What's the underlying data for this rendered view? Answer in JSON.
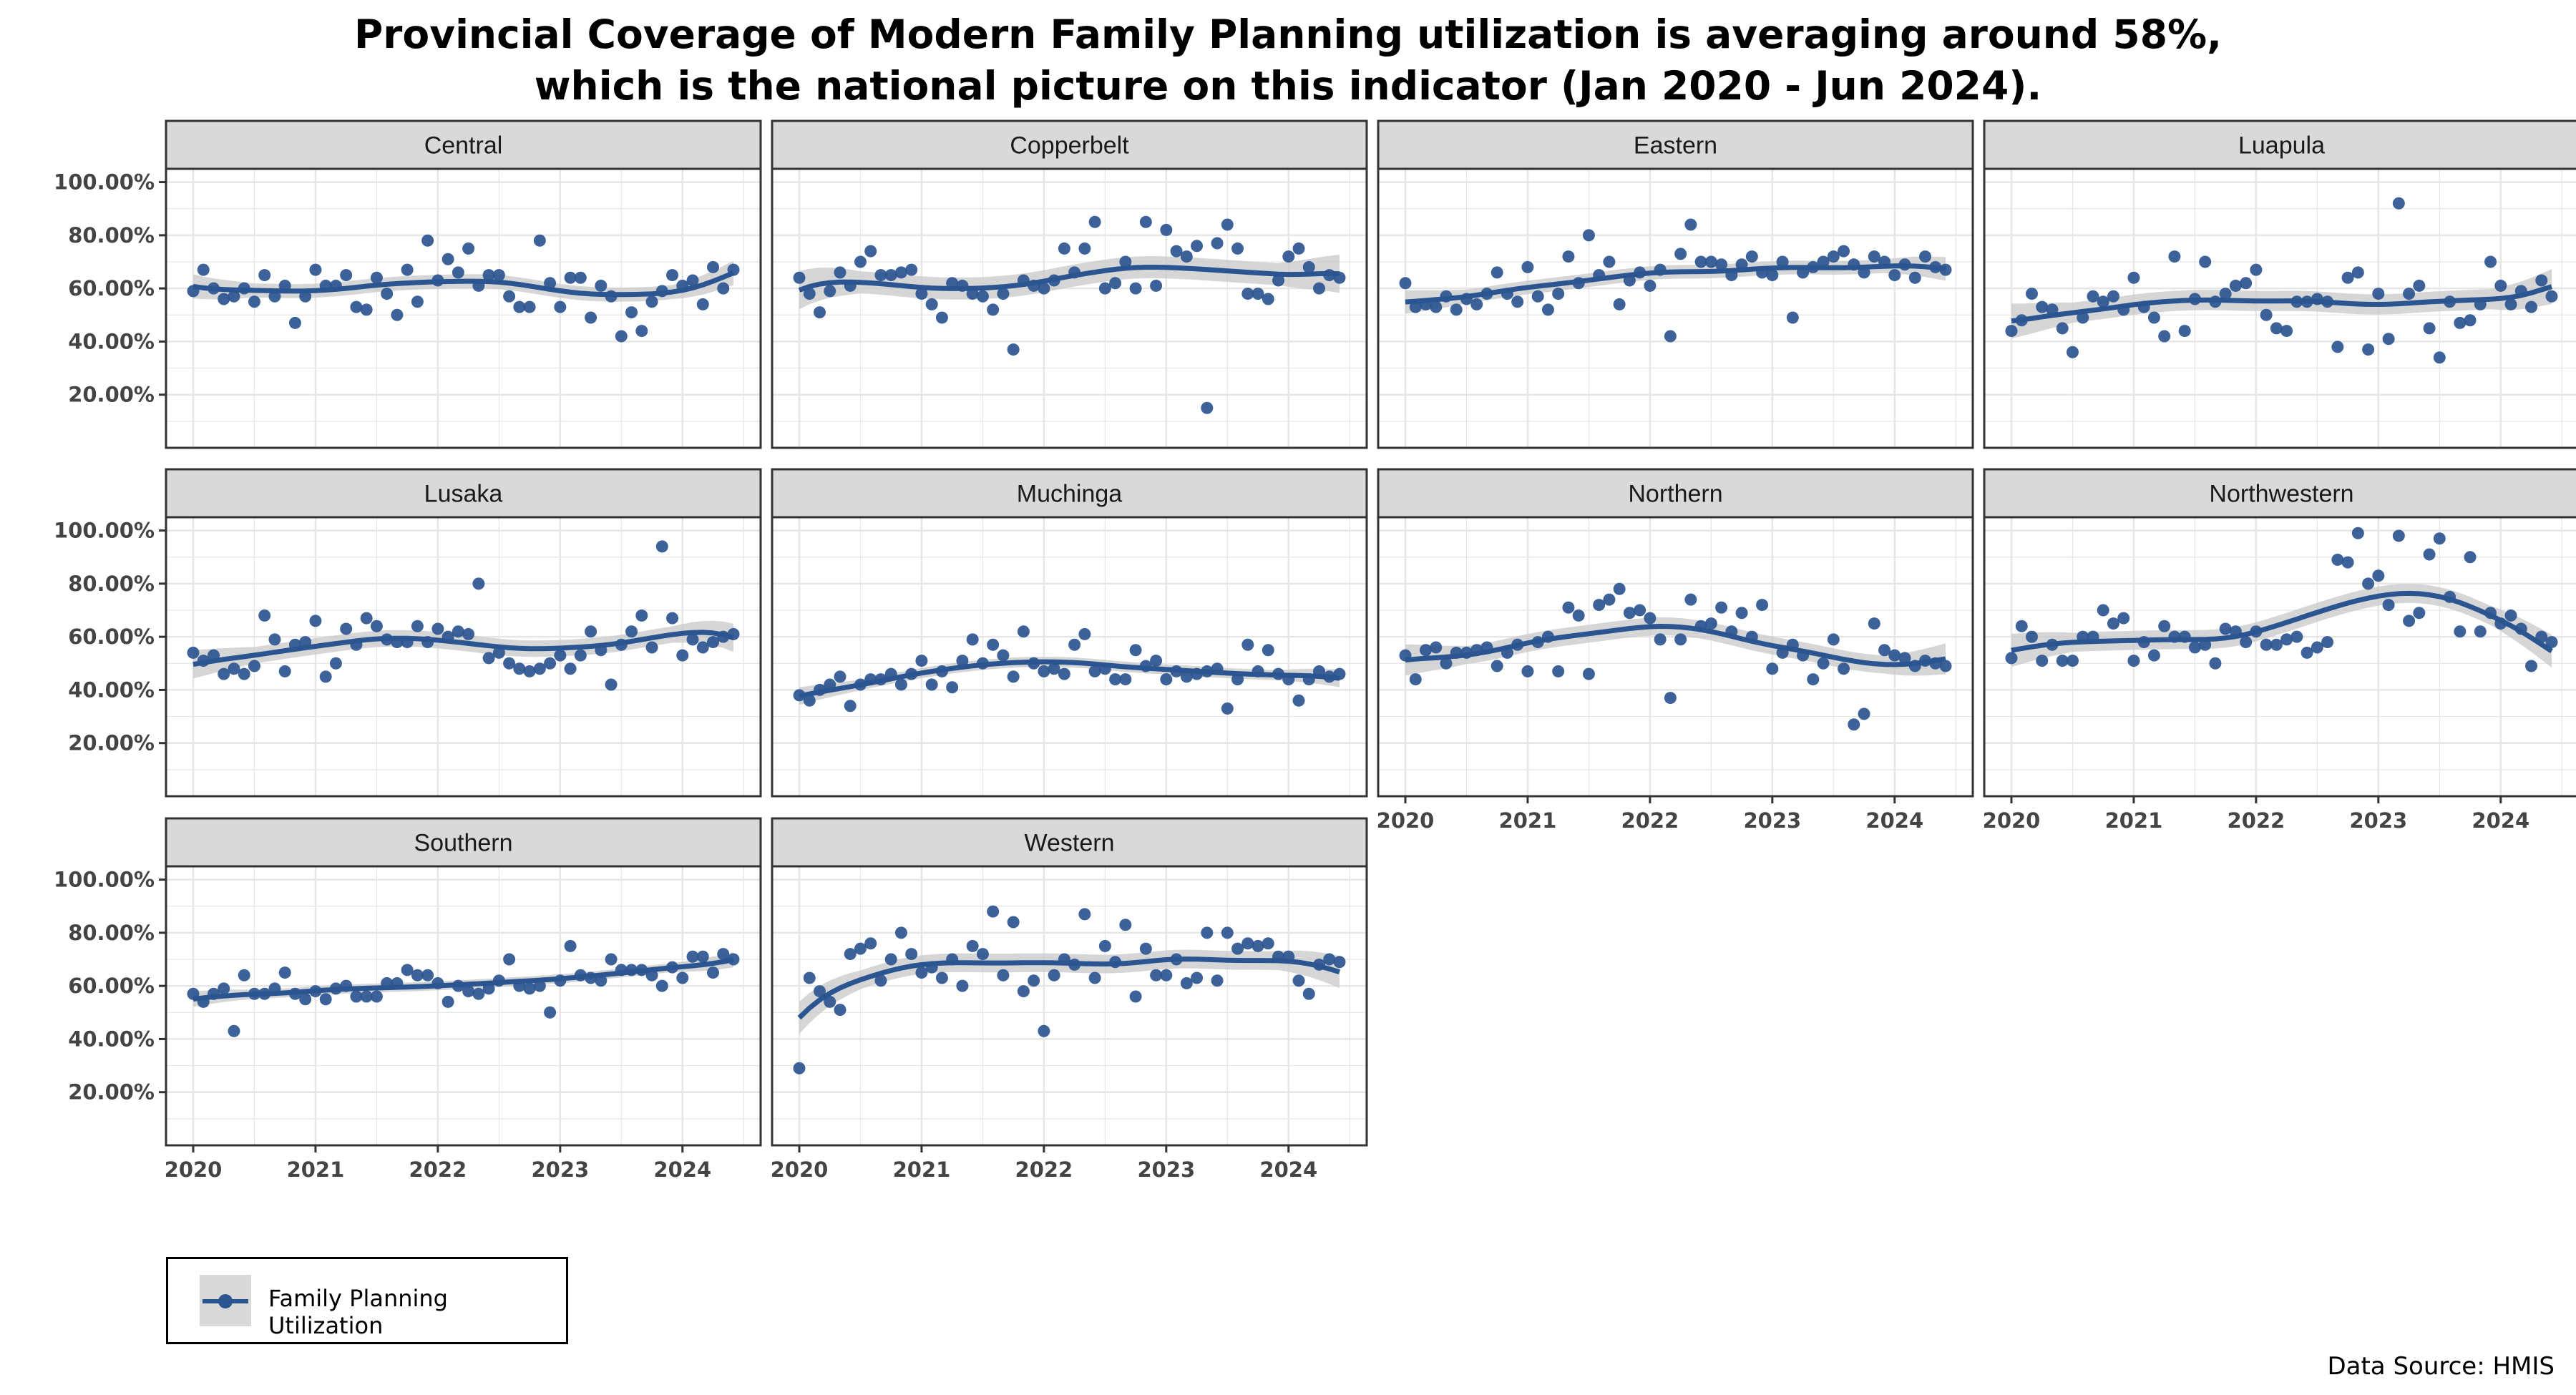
{
  "title": {
    "line1": "Provincial Coverage of Modern Family Planning utilization is averaging around 58%,",
    "line2": "which is the national picture on this indicator (Jan 2020 - Jun 2024)."
  },
  "source": "Data Source: HMIS",
  "legend": {
    "label": "Family Planning Utilization"
  },
  "colors": {
    "point": "#2b5590",
    "line": "#2b5590",
    "band": "#c8c8c8",
    "strip": "#d9d9d9",
    "grid": "#e6e6e6"
  },
  "chart_data": {
    "type": "scatter",
    "facet_by": "province",
    "x_start": "2020-01",
    "x_end": "2024-06",
    "x_ticks": [
      "2020",
      "2021",
      "2022",
      "2023",
      "2024"
    ],
    "y_ticks": [
      "20.00%",
      "40.00%",
      "60.00%",
      "80.00%",
      "100.00%"
    ],
    "ylim": [
      0,
      1.05
    ],
    "grid": true,
    "smooth": "loess with confidence band",
    "facets": [
      {
        "name": "Central",
        "values": [
          59,
          67,
          60,
          56,
          57,
          60,
          55,
          65,
          57,
          61,
          47,
          57,
          67,
          61,
          61,
          65,
          53,
          52,
          64,
          58,
          50,
          67,
          55,
          78,
          63,
          71,
          66,
          75,
          61,
          65,
          65,
          57,
          53,
          53,
          78,
          62,
          53,
          64,
          64,
          49,
          61,
          57,
          42,
          51,
          44,
          55,
          59,
          65,
          61,
          63,
          54,
          68,
          60,
          67
        ]
      },
      {
        "name": "Copperbelt",
        "values": [
          64,
          58,
          51,
          59,
          66,
          61,
          70,
          74,
          65,
          65,
          66,
          67,
          58,
          54,
          49,
          62,
          61,
          58,
          57,
          52,
          58,
          37,
          63,
          61,
          60,
          63,
          75,
          66,
          75,
          85,
          60,
          62,
          70,
          60,
          85,
          61,
          82,
          74,
          72,
          76,
          15,
          77,
          84,
          75,
          58,
          58,
          56,
          63,
          72,
          75,
          68,
          60,
          65,
          64
        ]
      },
      {
        "name": "Eastern",
        "values": [
          62,
          53,
          54,
          53,
          57,
          52,
          56,
          54,
          58,
          66,
          58,
          55,
          68,
          57,
          52,
          58,
          72,
          62,
          80,
          65,
          70,
          54,
          63,
          66,
          61,
          67,
          42,
          73,
          84,
          70,
          70,
          69,
          65,
          69,
          72,
          66,
          65,
          70,
          49,
          66,
          68,
          70,
          72,
          74,
          69,
          66,
          72,
          70,
          65,
          69,
          64,
          72,
          68,
          67
        ]
      },
      {
        "name": "Luapula",
        "values": [
          44,
          48,
          58,
          53,
          52,
          45,
          36,
          49,
          57,
          55,
          57,
          52,
          64,
          53,
          49,
          42,
          72,
          44,
          56,
          70,
          55,
          58,
          61,
          62,
          67,
          50,
          45,
          44,
          55,
          55,
          56,
          55,
          38,
          64,
          66,
          37,
          58,
          41,
          92,
          58,
          61,
          45,
          34,
          55,
          47,
          48,
          54,
          70,
          61,
          54,
          59,
          53,
          63,
          57
        ]
      },
      {
        "name": "Lusaka",
        "values": [
          54,
          51,
          53,
          46,
          48,
          46,
          49,
          68,
          59,
          47,
          57,
          58,
          66,
          45,
          50,
          63,
          57,
          67,
          64,
          59,
          58,
          58,
          64,
          58,
          63,
          60,
          62,
          61,
          80,
          52,
          54,
          50,
          48,
          47,
          48,
          50,
          53,
          48,
          53,
          62,
          55,
          42,
          57,
          62,
          68,
          56,
          94,
          67,
          53,
          59,
          56,
          58,
          60,
          61
        ]
      },
      {
        "name": "Muchinga",
        "values": [
          38,
          36,
          40,
          42,
          45,
          34,
          42,
          44,
          44,
          46,
          42,
          46,
          51,
          42,
          47,
          41,
          51,
          59,
          50,
          57,
          53,
          45,
          62,
          50,
          47,
          48,
          46,
          57,
          61,
          47,
          48,
          44,
          44,
          55,
          49,
          51,
          44,
          47,
          45,
          46,
          47,
          48,
          33,
          44,
          57,
          47,
          55,
          46,
          44,
          36,
          44,
          47,
          45,
          46
        ]
      },
      {
        "name": "Northern",
        "values": [
          53,
          44,
          55,
          56,
          50,
          54,
          54,
          55,
          56,
          49,
          54,
          57,
          47,
          58,
          60,
          47,
          71,
          68,
          46,
          72,
          74,
          78,
          69,
          70,
          67,
          59,
          37,
          59,
          74,
          64,
          65,
          71,
          62,
          69,
          60,
          72,
          48,
          54,
          57,
          53,
          44,
          50,
          59,
          48,
          27,
          31,
          65,
          55,
          53,
          52,
          49,
          51,
          50,
          49
        ]
      },
      {
        "name": "Northwestern",
        "values": [
          52,
          64,
          60,
          51,
          57,
          51,
          51,
          60,
          60,
          70,
          65,
          67,
          51,
          58,
          53,
          64,
          60,
          60,
          56,
          57,
          50,
          63,
          62,
          58,
          62,
          57,
          57,
          59,
          60,
          54,
          56,
          58,
          89,
          88,
          99,
          80,
          83,
          72,
          98,
          66,
          69,
          91,
          97,
          75,
          62,
          90,
          62,
          69,
          65,
          68,
          63,
          49,
          60,
          58
        ]
      },
      {
        "name": "Southern",
        "values": [
          57,
          54,
          57,
          59,
          43,
          64,
          57,
          57,
          59,
          65,
          57,
          55,
          58,
          55,
          59,
          60,
          56,
          56,
          56,
          61,
          61,
          66,
          64,
          64,
          61,
          54,
          60,
          58,
          57,
          59,
          62,
          70,
          60,
          59,
          60,
          50,
          62,
          75,
          64,
          63,
          62,
          70,
          66,
          66,
          66,
          64,
          60,
          67,
          63,
          71,
          71,
          65,
          72,
          70
        ]
      },
      {
        "name": "Western",
        "values": [
          29,
          63,
          58,
          54,
          51,
          72,
          74,
          76,
          62,
          70,
          80,
          72,
          65,
          67,
          63,
          70,
          60,
          75,
          72,
          88,
          64,
          84,
          58,
          62,
          43,
          64,
          70,
          68,
          87,
          63,
          75,
          69,
          83,
          56,
          74,
          64,
          64,
          70,
          61,
          63,
          80,
          62,
          80,
          74,
          76,
          75,
          76,
          71,
          71,
          62,
          57,
          68,
          70,
          69
        ]
      }
    ]
  }
}
